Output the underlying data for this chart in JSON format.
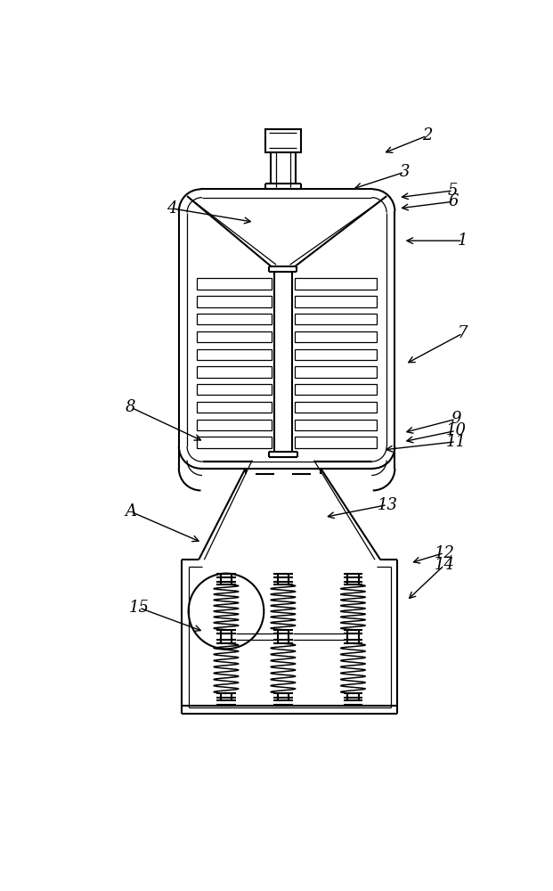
{
  "background": "#ffffff",
  "line_color": "#000000",
  "lw": 1.5,
  "tlw": 0.9,
  "annotations": [
    [
      "2",
      520,
      42,
      455,
      68
    ],
    [
      "3",
      487,
      95,
      410,
      120
    ],
    [
      "4",
      148,
      148,
      268,
      168
    ],
    [
      "5",
      558,
      122,
      478,
      132
    ],
    [
      "6",
      558,
      138,
      478,
      148
    ],
    [
      "1",
      572,
      195,
      485,
      195
    ],
    [
      "7",
      572,
      330,
      488,
      375
    ],
    [
      "8",
      88,
      438,
      195,
      488
    ],
    [
      "9",
      562,
      455,
      485,
      475
    ],
    [
      "10",
      562,
      472,
      485,
      488
    ],
    [
      "11",
      562,
      488,
      455,
      500
    ],
    [
      "13",
      462,
      580,
      370,
      598
    ],
    [
      "12",
      545,
      650,
      495,
      665
    ],
    [
      "14",
      545,
      668,
      490,
      720
    ],
    [
      "15",
      100,
      730,
      195,
      765
    ],
    [
      "A",
      88,
      590,
      192,
      635
    ]
  ]
}
